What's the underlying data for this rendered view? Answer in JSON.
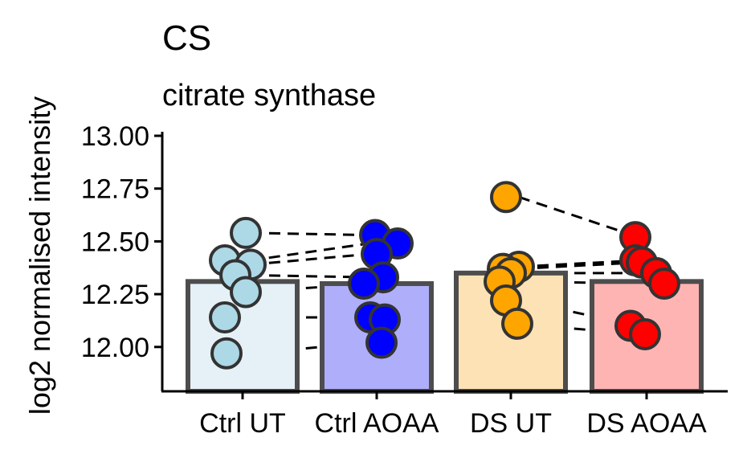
{
  "chart_data": {
    "type": "bar",
    "title": "CS",
    "subtitle": "citrate synthase",
    "ylabel": "log2 normalised intensity",
    "xlabel": "",
    "ylim": [
      11.79,
      13.0
    ],
    "yticks": [
      "12.00",
      "12.25",
      "12.50",
      "12.75",
      "13.00"
    ],
    "categories": [
      "Ctrl UT",
      "Ctrl AOAA",
      "DS UT",
      "DS AOAA"
    ],
    "values": [
      12.31,
      12.3,
      12.35,
      12.31
    ],
    "bar_fills": [
      "#e6f1f7",
      "#aeaefa",
      "#fde2b5",
      "#ffb4b4"
    ],
    "point_fills": [
      "#add8e6",
      "#0000ff",
      "#ffa500",
      "#ff0000"
    ],
    "points": [
      [
        12.54,
        12.41,
        12.39,
        12.34,
        12.26,
        12.14,
        11.97
      ],
      [
        12.53,
        12.49,
        12.44,
        12.33,
        12.3,
        12.14,
        12.13,
        12.02
      ],
      [
        12.71,
        12.38,
        12.37,
        12.35,
        12.31,
        12.22,
        12.11
      ],
      [
        12.52,
        12.41,
        12.4,
        12.35,
        12.3,
        12.1,
        12.06
      ]
    ],
    "pairs": [
      [
        [
          0,
          12.54
        ],
        [
          1,
          12.53
        ]
      ],
      [
        [
          0,
          12.41
        ],
        [
          1,
          12.49
        ]
      ],
      [
        [
          0,
          12.39
        ],
        [
          1,
          12.44
        ]
      ],
      [
        [
          0,
          12.34
        ],
        [
          1,
          12.33
        ]
      ],
      [
        [
          0,
          12.26
        ],
        [
          1,
          12.3
        ]
      ],
      [
        [
          0,
          12.14
        ],
        [
          1,
          12.14
        ]
      ],
      [
        [
          0,
          11.97
        ],
        [
          1,
          12.02
        ]
      ],
      [
        [
          2,
          12.71
        ],
        [
          3,
          12.52
        ]
      ],
      [
        [
          2,
          12.38
        ],
        [
          3,
          12.41
        ]
      ],
      [
        [
          2,
          12.37
        ],
        [
          3,
          12.4
        ]
      ],
      [
        [
          2,
          12.35
        ],
        [
          3,
          12.35
        ]
      ],
      [
        [
          2,
          12.31
        ],
        [
          3,
          12.3
        ]
      ],
      [
        [
          2,
          12.22
        ],
        [
          3,
          12.1
        ]
      ],
      [
        [
          2,
          12.11
        ],
        [
          3,
          12.06
        ]
      ]
    ]
  }
}
